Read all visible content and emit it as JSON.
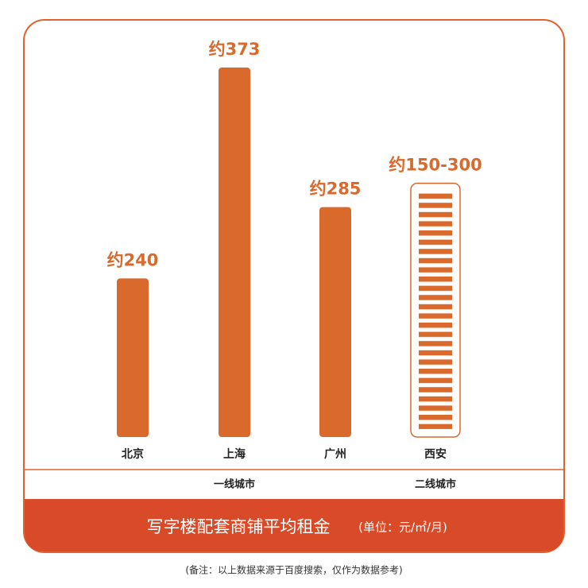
{
  "chart_data": {
    "type": "bar",
    "title": "写字楼配套商铺平均租金",
    "unit": "(单位：元/㎡/月)",
    "note": "(备注：以上数据来源于百度搜索，仅作为数据参考)",
    "categories": [
      "北京",
      "上海",
      "广州",
      "西安"
    ],
    "groups": [
      "一线城市",
      "二线城市"
    ],
    "values": [
      240,
      373,
      285,
      300
    ],
    "lows": [
      null,
      null,
      null,
      150
    ],
    "value_labels": [
      "约240",
      "约373",
      "约285",
      "约150-300"
    ],
    "color": "#d96a2c",
    "ylim": [
      140,
      373
    ]
  }
}
